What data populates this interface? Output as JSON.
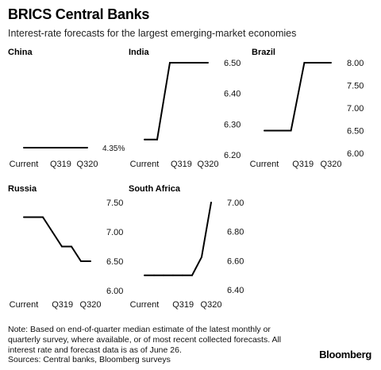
{
  "header": {
    "title": "BRICS Central Banks",
    "subtitle": "Interest-rate forecasts for the largest emerging-market economies"
  },
  "footer": {
    "note_lines": [
      "Note: Based on end-of-quarter median estimate of the latest monthly or",
      "quarterly survey, where available, or of most recent collected forecasts. All",
      "interest rate and forecast data is as of June 26.",
      "Sources: Central banks, Bloomberg surveys"
    ],
    "brand": "Bloomberg"
  },
  "chart_data": [
    {
      "type": "line",
      "title": "China",
      "x": [
        0,
        1,
        2,
        3,
        4,
        5
      ],
      "xticks": [
        "Current",
        "Q319",
        "Q320"
      ],
      "y": [
        4.35,
        4.35,
        4.35,
        4.35,
        4.35,
        4.35
      ],
      "yticks": [],
      "end_label": "4.35%",
      "ylim": [
        4.0,
        5.0
      ]
    },
    {
      "type": "line",
      "title": "India",
      "x": [
        0,
        1,
        2,
        3,
        4,
        5
      ],
      "xticks": [
        "Current",
        "Q319",
        "Q320"
      ],
      "y": [
        6.25,
        6.25,
        6.5,
        6.5,
        6.5,
        6.5
      ],
      "yticks": [
        "6.50",
        "6.40",
        "6.30",
        "6.20"
      ],
      "ylim": [
        6.2,
        6.5
      ]
    },
    {
      "type": "line",
      "title": "Brazil",
      "x": [
        0,
        1,
        2,
        3,
        4,
        5
      ],
      "xticks": [
        "Current",
        "Q319",
        "Q320"
      ],
      "y": [
        6.5,
        6.5,
        6.5,
        8.0,
        8.0,
        8.0
      ],
      "yticks": [
        "8.00",
        "7.50",
        "7.00",
        "6.50",
        "6.00"
      ],
      "ylim": [
        6.0,
        8.0
      ]
    },
    {
      "type": "line",
      "title": "Russia",
      "x": [
        0,
        1,
        2,
        3,
        4,
        5,
        6,
        7
      ],
      "xticks": [
        "Current",
        "Q319",
        "Q320"
      ],
      "y": [
        7.25,
        7.25,
        7.25,
        7.0,
        6.75,
        6.75,
        6.5,
        6.5
      ],
      "yticks": [
        "7.50",
        "7.00",
        "6.50",
        "6.00"
      ],
      "ylim": [
        6.0,
        7.5
      ]
    },
    {
      "type": "line",
      "title": "South Africa",
      "x": [
        0,
        1,
        2,
        3,
        4,
        5,
        6,
        7
      ],
      "xticks": [
        "Current",
        "Q319",
        "Q320"
      ],
      "y": [
        6.5,
        6.5,
        6.5,
        6.5,
        6.5,
        6.5,
        6.625,
        7.0
      ],
      "yticks": [
        "7.00",
        "6.80",
        "6.60",
        "6.40"
      ],
      "ylim": [
        6.4,
        7.0
      ]
    }
  ]
}
